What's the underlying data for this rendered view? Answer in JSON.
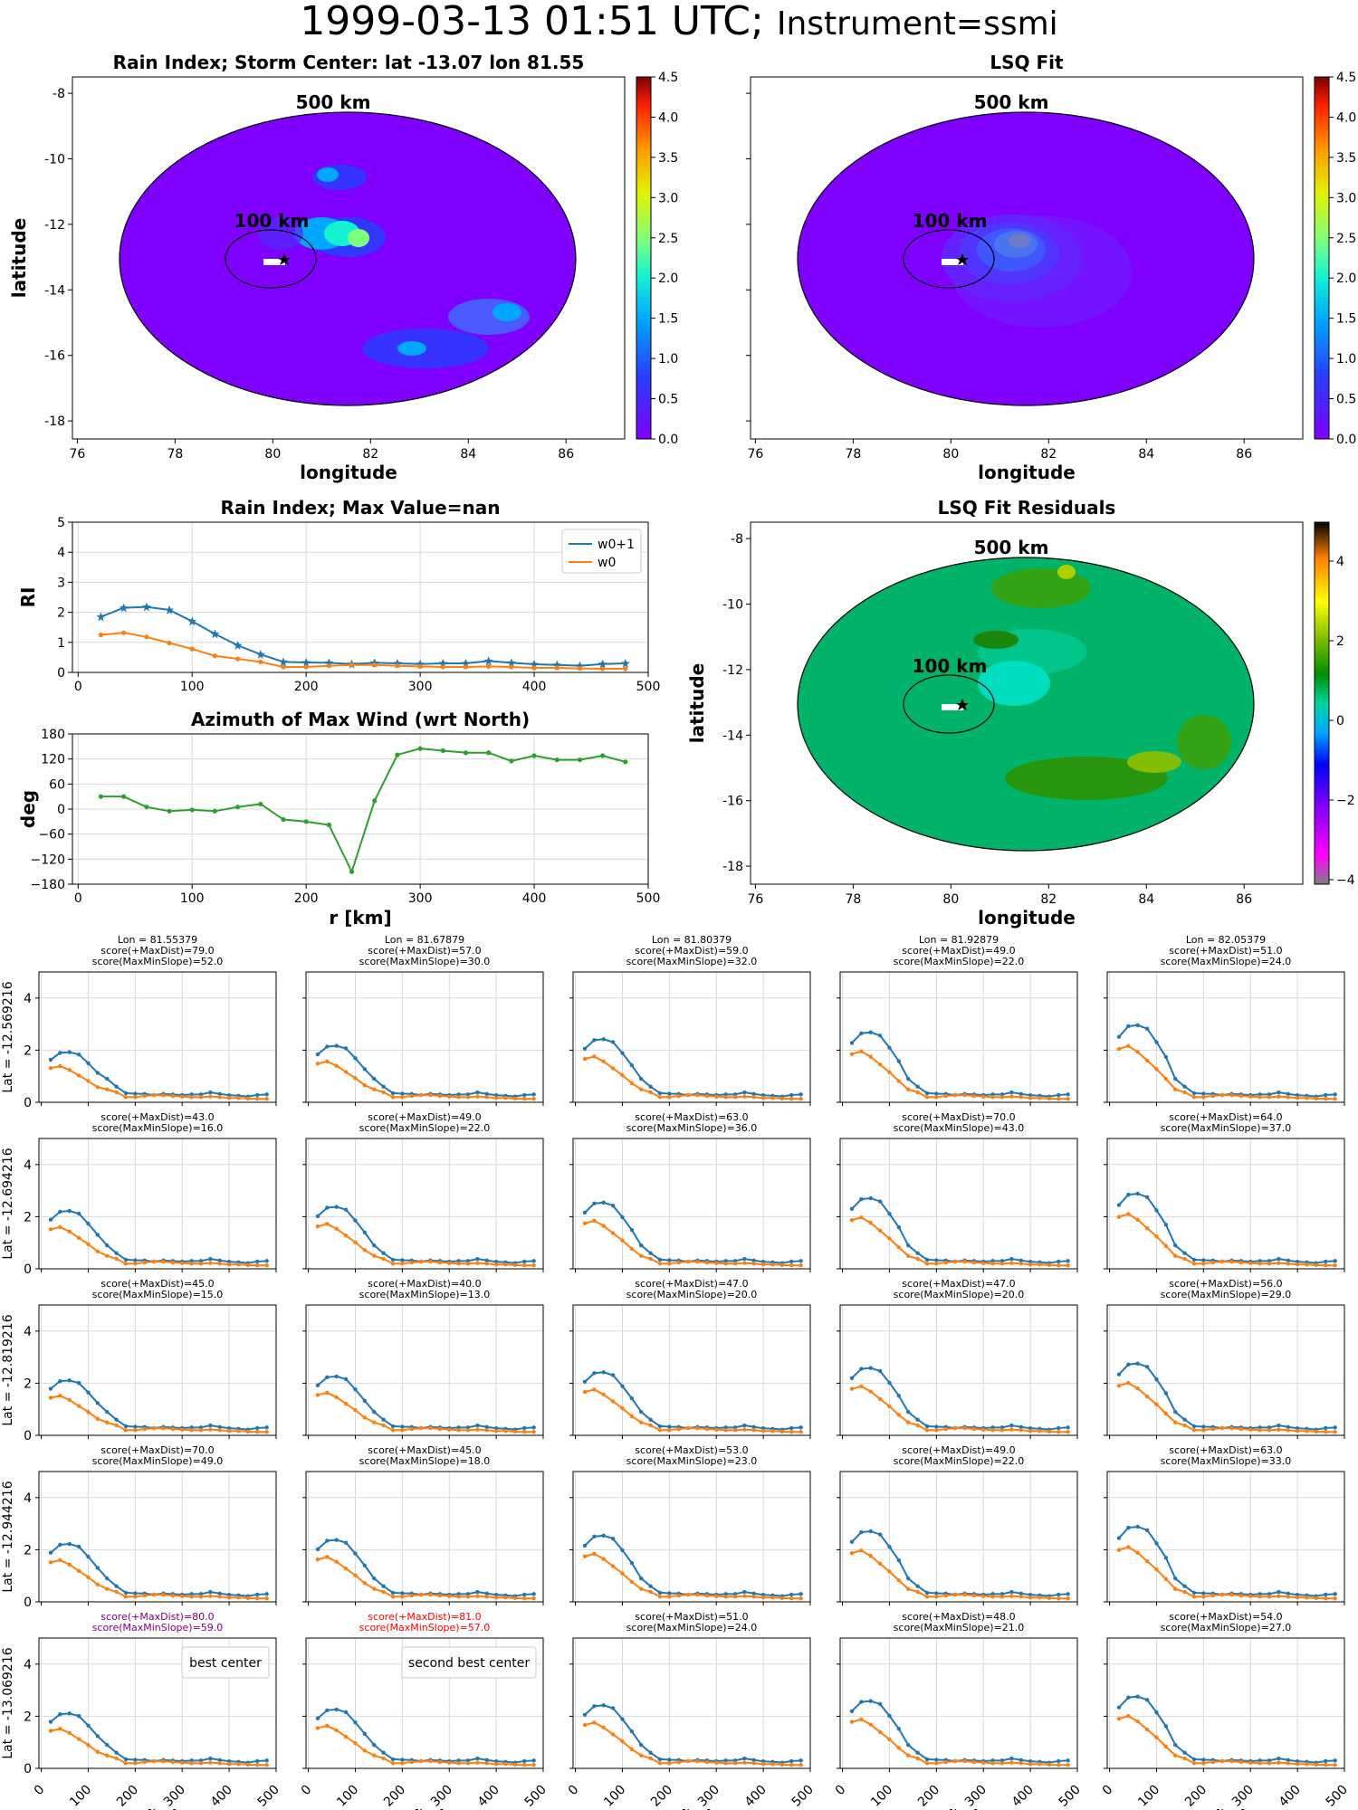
{
  "title": {
    "main": "1999-03-13 01:51 UTC;",
    "instrument": "Instrument=ssmi"
  },
  "colors": {
    "w0p1": "#1f77b4",
    "w0": "#ff7f0e",
    "azimuth": "#2ca02c",
    "highlight_purple": "#800080",
    "highlight_red": "#ff0000",
    "grid": "#d9d9d9"
  },
  "ring_labels": {
    "outer": "500 km",
    "inner": "100 km"
  },
  "map_left": {
    "title": "Rain Index; Storm Center: lat -13.07 lon 81.55",
    "xlabel": "longitude",
    "ylabel": "latitude",
    "xticks": [
      "76",
      "78",
      "80",
      "82",
      "84",
      "86"
    ],
    "yticks": [
      "-8",
      "-10",
      "-12",
      "-14",
      "-16",
      "-18"
    ],
    "cbar_ticks": [
      "0.0",
      "0.5",
      "1.0",
      "1.5",
      "2.0",
      "2.5",
      "3.0",
      "3.5",
      "4.0",
      "4.5"
    ]
  },
  "map_right": {
    "title": "LSQ Fit",
    "xticks": [
      "76",
      "78",
      "80",
      "82",
      "84",
      "86"
    ],
    "xlabel": "longitude",
    "cbar_ticks": [
      "0.0",
      "0.5",
      "1.0",
      "1.5",
      "2.0",
      "2.5",
      "3.0",
      "3.5",
      "4.0",
      "4.5"
    ]
  },
  "map_resid": {
    "title": "LSQ Fit Residuals",
    "xlabel": "longitude",
    "ylabel": "latitude",
    "xticks": [
      "76",
      "78",
      "80",
      "82",
      "84",
      "86"
    ],
    "yticks": [
      "-8",
      "-10",
      "-12",
      "-14",
      "-16",
      "-18"
    ],
    "cbar_ticks": [
      "4",
      "2",
      "0",
      "−2",
      "−4"
    ]
  },
  "chart_data": [
    {
      "type": "line",
      "title": "Rain Index; Max Value=nan",
      "ylabel": "RI",
      "xlabel": "",
      "xlim": [
        -5,
        500
      ],
      "ylim": [
        0,
        5
      ],
      "xticks": [
        "0",
        "100",
        "200",
        "300",
        "400",
        "500"
      ],
      "yticks": [
        "0",
        "1",
        "2",
        "3",
        "4",
        "5"
      ],
      "legend": "top-right",
      "x": [
        20,
        40,
        60,
        80,
        100,
        120,
        140,
        160,
        180,
        200,
        220,
        240,
        260,
        280,
        300,
        320,
        340,
        360,
        380,
        400,
        420,
        440,
        460,
        480
      ],
      "series": [
        {
          "name": "w0+1",
          "values": [
            1.85,
            2.15,
            2.18,
            2.08,
            1.7,
            1.28,
            0.9,
            0.6,
            0.35,
            0.33,
            0.32,
            0.28,
            0.32,
            0.3,
            0.28,
            0.3,
            0.3,
            0.38,
            0.32,
            0.27,
            0.25,
            0.22,
            0.28,
            0.3
          ]
        },
        {
          "name": "w0",
          "values": [
            1.25,
            1.32,
            1.18,
            0.98,
            0.78,
            0.55,
            0.45,
            0.35,
            0.18,
            0.18,
            0.22,
            0.25,
            0.25,
            0.22,
            0.2,
            0.18,
            0.18,
            0.2,
            0.18,
            0.15,
            0.15,
            0.13,
            0.12,
            0.12
          ]
        }
      ]
    },
    {
      "type": "line",
      "title": "Azimuth of Max Wind (wrt North)",
      "ylabel": "deg",
      "xlabel": "r [km]",
      "xlim": [
        -5,
        500
      ],
      "ylim": [
        -180,
        180
      ],
      "xticks": [
        "0",
        "100",
        "200",
        "300",
        "400",
        "500"
      ],
      "yticks": [
        "180",
        "120",
        "60",
        "0",
        "−60",
        "−120",
        "−180"
      ],
      "x": [
        20,
        40,
        60,
        80,
        100,
        120,
        140,
        160,
        180,
        200,
        220,
        240,
        260,
        280,
        300,
        320,
        340,
        360,
        380,
        400,
        420,
        440,
        460,
        480
      ],
      "series": [
        {
          "values": [
            30,
            30,
            5,
            -5,
            -2,
            -5,
            5,
            12,
            -25,
            -30,
            -38,
            -150,
            20,
            130,
            145,
            140,
            135,
            135,
            115,
            128,
            118,
            118,
            128,
            113
          ]
        }
      ]
    }
  ],
  "grid": {
    "row_labels": [
      "Lat = -12.569216",
      "Lat = -12.694216",
      "Lat = -12.819216",
      "Lat = -12.944216",
      "Lat = -13.069216"
    ],
    "col_headers": [
      "Lon = 81.55379",
      "Lon = 81.67879",
      "Lon = 81.80379",
      "Lon = 81.92879",
      "Lon = 82.05379"
    ],
    "scores": [
      [
        [
          "score(+MaxDist)=79.0",
          "score(MaxMinSlope)=52.0"
        ],
        [
          "score(+MaxDist)=57.0",
          "score(MaxMinSlope)=30.0"
        ],
        [
          "score(+MaxDist)=59.0",
          "score(MaxMinSlope)=32.0"
        ],
        [
          "score(+MaxDist)=49.0",
          "score(MaxMinSlope)=22.0"
        ],
        [
          "score(+MaxDist)=51.0",
          "score(MaxMinSlope)=24.0"
        ]
      ],
      [
        [
          "score(+MaxDist)=43.0",
          "score(MaxMinSlope)=16.0"
        ],
        [
          "score(+MaxDist)=49.0",
          "score(MaxMinSlope)=22.0"
        ],
        [
          "score(+MaxDist)=63.0",
          "score(MaxMinSlope)=36.0"
        ],
        [
          "score(+MaxDist)=70.0",
          "score(MaxMinSlope)=43.0"
        ],
        [
          "score(+MaxDist)=64.0",
          "score(MaxMinSlope)=37.0"
        ]
      ],
      [
        [
          "score(+MaxDist)=45.0",
          "score(MaxMinSlope)=15.0"
        ],
        [
          "score(+MaxDist)=40.0",
          "score(MaxMinSlope)=13.0"
        ],
        [
          "score(+MaxDist)=47.0",
          "score(MaxMinSlope)=20.0"
        ],
        [
          "score(+MaxDist)=47.0",
          "score(MaxMinSlope)=20.0"
        ],
        [
          "score(+MaxDist)=56.0",
          "score(MaxMinSlope)=29.0"
        ]
      ],
      [
        [
          "score(+MaxDist)=70.0",
          "score(MaxMinSlope)=49.0"
        ],
        [
          "score(+MaxDist)=45.0",
          "score(MaxMinSlope)=18.0"
        ],
        [
          "score(+MaxDist)=53.0",
          "score(MaxMinSlope)=23.0"
        ],
        [
          "score(+MaxDist)=49.0",
          "score(MaxMinSlope)=22.0"
        ],
        [
          "score(+MaxDist)=63.0",
          "score(MaxMinSlope)=33.0"
        ]
      ],
      [
        [
          "score(+MaxDist)=80.0",
          "score(MaxMinSlope)=59.0"
        ],
        [
          "score(+MaxDist)=81.0",
          "score(MaxMinSlope)=57.0"
        ],
        [
          "score(+MaxDist)=51.0",
          "score(MaxMinSlope)=24.0"
        ],
        [
          "score(+MaxDist)=48.0",
          "score(MaxMinSlope)=21.0"
        ],
        [
          "score(+MaxDist)=54.0",
          "score(MaxMinSlope)=27.0"
        ]
      ]
    ],
    "legend_best": "best center",
    "legend_second": "second best center",
    "xticks": [
      "0",
      "100",
      "200",
      "300",
      "400",
      "500"
    ],
    "yticks": [
      "0",
      "2",
      "4"
    ],
    "xlabel": "r [km]"
  }
}
